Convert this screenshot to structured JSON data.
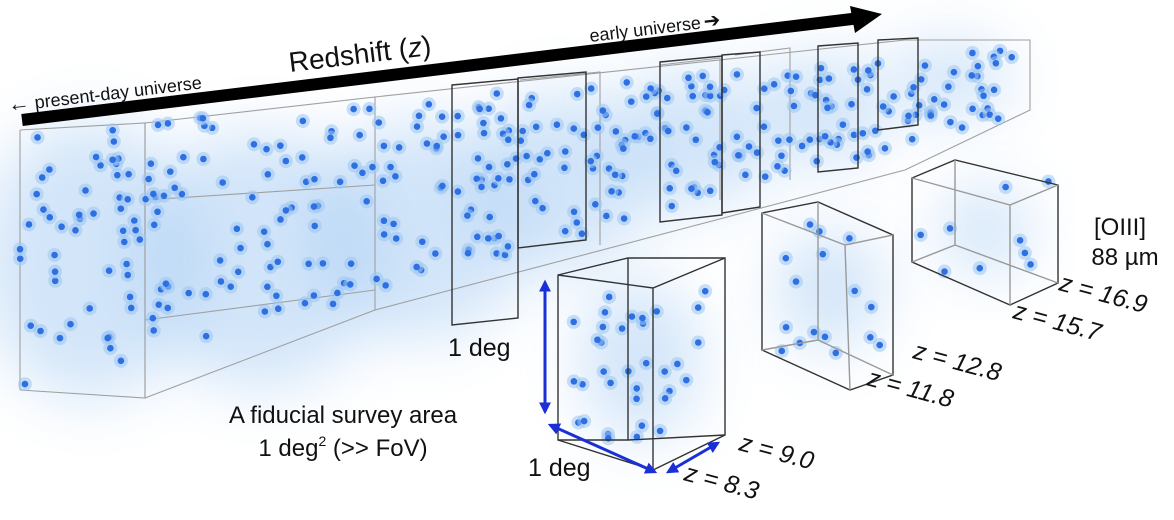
{
  "labels": {
    "redshift_prefix": "Redshift (",
    "redshift_var": "z",
    "redshift_suffix": ")",
    "present": "present-day universe",
    "early": "early universe",
    "line_name": "[OIII]",
    "line_wavelength": "88 µm",
    "angle_vertical": "1 deg",
    "angle_horizontal": "1 deg",
    "survey_line1": "A fiducial survey area",
    "survey_line2_a": "1 deg",
    "survey_line2_sup": "2",
    "survey_line2_b": " (>> FoV)"
  },
  "redshift_slices": [
    {
      "pair": "small-cube",
      "label": "z = 9.0"
    },
    {
      "pair": "small-cube",
      "label": "z = 8.3"
    },
    {
      "pair": "mid-cube",
      "label": "z = 12.8"
    },
    {
      "pair": "mid-cube",
      "label": "z = 11.8"
    },
    {
      "pair": "far-cube",
      "label": "z = 16.9"
    },
    {
      "pair": "far-cube",
      "label": "z = 15.7"
    }
  ],
  "colors": {
    "galaxy": "#2f6fe4",
    "glow": "#9cc6f2",
    "edge": "#333333",
    "faint_edge": "#9a9a9a",
    "scale_arrow": "#1a2fd6",
    "axis_arrow": "#000000"
  },
  "icons": [
    "arrow-left-icon",
    "arrow-right-icon"
  ]
}
